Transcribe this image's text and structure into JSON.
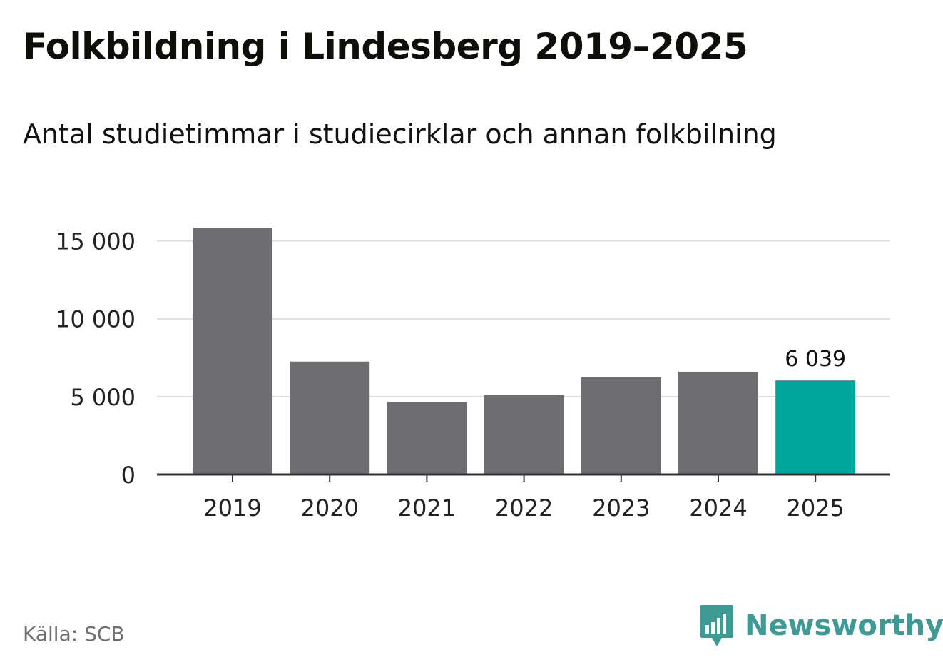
{
  "header": {
    "title": "Folkbildning i Lindesberg 2019–2025",
    "subtitle": "Antal studietimmar i studiecirklar och annan folkbilning"
  },
  "footer": {
    "source": "Källa: SCB",
    "brand": "Newsworthy",
    "brand_icon": "newsworthy-logo-icon"
  },
  "colors": {
    "bar": "#6e6d72",
    "highlight": "#00a59b",
    "grid": "#dcdcdc",
    "axis": "#333333",
    "text": "#222222",
    "brand": "#3d9a95"
  },
  "chart_data": {
    "type": "bar",
    "title": "Folkbildning i Lindesberg 2019–2025",
    "subtitle": "Antal studietimmar i studiecirklar och annan folkbilning",
    "categories": [
      "2019",
      "2020",
      "2021",
      "2022",
      "2023",
      "2024",
      "2025"
    ],
    "values": [
      15850,
      7250,
      4650,
      5100,
      6250,
      6600,
      6039
    ],
    "highlight_index": 6,
    "highlight_label": "6 039",
    "yticks": [
      0,
      5000,
      10000,
      15000
    ],
    "ytick_labels": [
      "0",
      "5 000",
      "10 000",
      "15 000"
    ],
    "ylim": [
      0,
      15850
    ],
    "xlabel": "",
    "ylabel": "",
    "grid": true
  }
}
